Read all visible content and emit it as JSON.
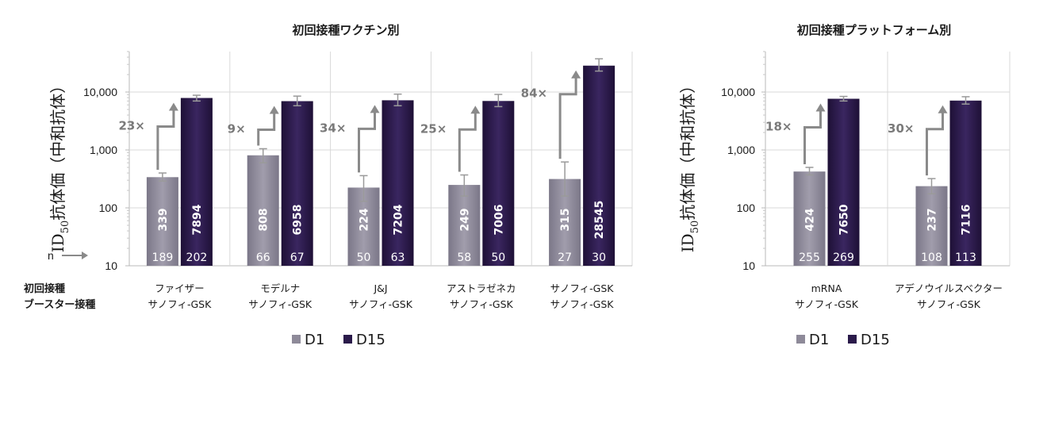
{
  "chart_data": [
    {
      "type": "bar",
      "title": "初回接種ワクチン別",
      "ylabel_main": "ID",
      "ylabel_sub": "50",
      "ylabel_rest": "抗体価（中和抗体）",
      "yscale": "log",
      "ylim": [
        10,
        50000
      ],
      "yticks": [
        "10",
        "100",
        "1,000",
        "10,000"
      ],
      "row_header_1": "初回接種",
      "row_header_2": "ブースター接種",
      "n_label": "n",
      "categories": [
        {
          "line1": "ファイザー",
          "line2": "サノフィ-GSK"
        },
        {
          "line1": "モデルナ",
          "line2": "サノフィ-GSK"
        },
        {
          "line1": "J&J",
          "line2": "サノフィ-GSK"
        },
        {
          "line1": "アストラゼネカ",
          "line2": "サノフィ-GSK"
        },
        {
          "line1": "サノフィ-GSK",
          "line2": "サノフィ-GSK"
        }
      ],
      "series": [
        {
          "name": "D1",
          "color": "#8e8a99",
          "values": [
            339,
            808,
            224,
            249,
            315
          ],
          "labels": [
            "339",
            "808",
            "224",
            "249",
            "315"
          ],
          "n": [
            "189",
            "66",
            "50",
            "58",
            "27"
          ],
          "err_low": [
            290,
            600,
            130,
            160,
            160
          ],
          "err_high": [
            400,
            1050,
            360,
            370,
            620
          ]
        },
        {
          "name": "D15",
          "color": "#2a1a4a",
          "values": [
            7894,
            6958,
            7204,
            7006,
            28545
          ],
          "labels": [
            "7894",
            "6958",
            "7204",
            "7006",
            "28545"
          ],
          "n": [
            "202",
            "67",
            "63",
            "50",
            "30"
          ],
          "err_low": [
            7000,
            5800,
            5800,
            5600,
            23000
          ],
          "err_high": [
            8800,
            8500,
            9200,
            9100,
            37500
          ]
        }
      ],
      "fold_labels": [
        "23×",
        "9×",
        "34×",
        "25×",
        "84×"
      ]
    },
    {
      "type": "bar",
      "title": "初回接種プラットフォーム別",
      "ylabel_main": "ID",
      "ylabel_sub": "50",
      "ylabel_rest": "抗体価（中和抗体）",
      "yscale": "log",
      "ylim": [
        10,
        50000
      ],
      "yticks": [
        "10",
        "100",
        "1,000",
        "10,000"
      ],
      "categories": [
        {
          "line1": "mRNA",
          "line2": "サノフィ-GSK"
        },
        {
          "line1": "アデノウイルスベクター",
          "line2": "サノフィ-GSK"
        }
      ],
      "series": [
        {
          "name": "D1",
          "color": "#8e8a99",
          "values": [
            424,
            237
          ],
          "labels": [
            "424",
            "237"
          ],
          "n": [
            "255",
            "108"
          ],
          "err_low": [
            370,
            175
          ],
          "err_high": [
            500,
            320
          ]
        },
        {
          "name": "D15",
          "color": "#2a1a4a",
          "values": [
            7650,
            7116
          ],
          "labels": [
            "7650",
            "7116"
          ],
          "n": [
            "269",
            "113"
          ],
          "err_low": [
            7000,
            6200
          ],
          "err_high": [
            8400,
            8300
          ]
        }
      ],
      "fold_labels": [
        "18×",
        "30×"
      ]
    }
  ]
}
